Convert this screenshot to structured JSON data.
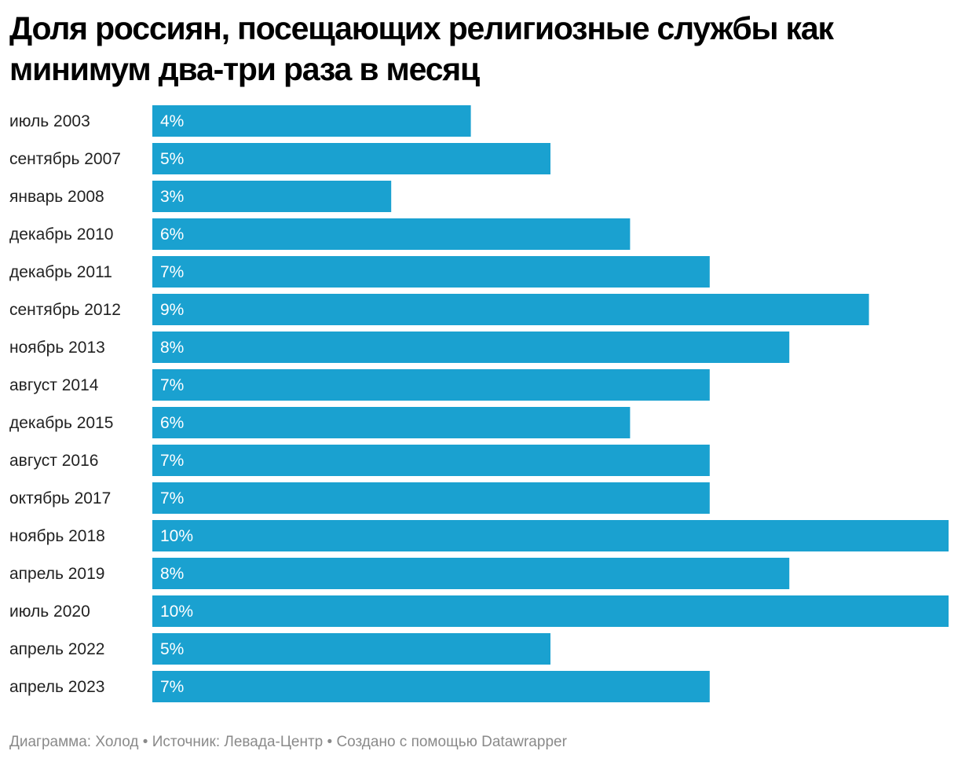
{
  "chart_data": {
    "type": "bar",
    "orientation": "horizontal",
    "title": "Доля россиян, посещающих религиозные службы как минимум два-три раза в месяц",
    "categories": [
      "июль 2003",
      "сентябрь 2007",
      "январь 2008",
      "декабрь 2010",
      "декабрь 2011",
      "сентябрь 2012",
      "ноябрь 2013",
      "август 2014",
      "декабрь 2015",
      "август 2016",
      "октябрь 2017",
      "ноябрь 2018",
      "апрель 2019",
      "июль 2020",
      "апрель 2022",
      "апрель 2023"
    ],
    "values": [
      4,
      5,
      3,
      6,
      7,
      9,
      8,
      7,
      6,
      7,
      7,
      10,
      8,
      10,
      5,
      7
    ],
    "value_labels": [
      "4%",
      "5%",
      "3%",
      "6%",
      "7%",
      "9%",
      "8%",
      "7%",
      "6%",
      "7%",
      "7%",
      "10%",
      "8%",
      "10%",
      "5%",
      "7%"
    ],
    "xlim": [
      0,
      10
    ],
    "unit": "%",
    "bar_color": "#1aa1d0",
    "label_color": "#ffffff"
  },
  "footer": "Диаграмма: Холод • Источник: Левада-Центр • Создано с помощью Datawrapper"
}
